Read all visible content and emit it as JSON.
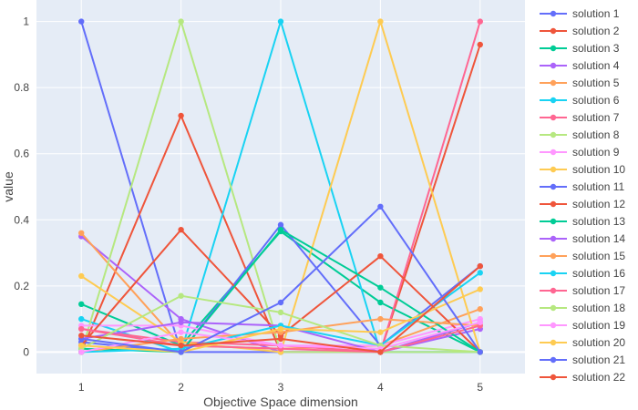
{
  "chart_data": {
    "type": "line",
    "xlabel": "Objective Space dimension",
    "ylabel": "value",
    "x": [
      1,
      2,
      3,
      4,
      5
    ],
    "xlim": [
      0.55,
      5.45
    ],
    "ylim": [
      -0.065,
      1.065
    ],
    "yticks": [
      0,
      0.2,
      0.4,
      0.6,
      0.8,
      1
    ],
    "ytick_labels": [
      "0",
      "0.2",
      "0.4",
      "0.6",
      "0.8",
      "1"
    ],
    "xtick_labels": [
      "1",
      "2",
      "3",
      "4",
      "5"
    ],
    "grid": true,
    "plot_bgcolor": "#e5ecf6",
    "legend_position": "right",
    "series": [
      {
        "name": "solution 1",
        "color": "#636efa",
        "values": [
          1.0,
          0.0,
          0.0,
          0.0,
          0.0
        ]
      },
      {
        "name": "solution 2",
        "color": "#ef553b",
        "values": [
          0.0,
          0.715,
          0.0,
          0.0,
          0.93
        ]
      },
      {
        "name": "solution 3",
        "color": "#00cc96",
        "values": [
          0.145,
          0.02,
          0.365,
          0.15,
          0.0
        ]
      },
      {
        "name": "solution 4",
        "color": "#ab63fa",
        "values": [
          0.35,
          0.1,
          0.0,
          0.0,
          0.07
        ]
      },
      {
        "name": "solution 5",
        "color": "#ffa15a",
        "values": [
          0.36,
          0.02,
          0.01,
          0.02,
          0.13
        ]
      },
      {
        "name": "solution 6",
        "color": "#19d3f3",
        "values": [
          0.1,
          0.0,
          1.0,
          0.0,
          0.0
        ]
      },
      {
        "name": "solution 7",
        "color": "#ff6692",
        "values": [
          0.07,
          0.03,
          0.02,
          0.0,
          1.0
        ]
      },
      {
        "name": "solution 8",
        "color": "#b6e880",
        "values": [
          0.0,
          1.0,
          0.0,
          0.0,
          0.0
        ]
      },
      {
        "name": "solution 9",
        "color": "#ff97ff",
        "values": [
          0.08,
          0.08,
          0.02,
          0.02,
          0.1
        ]
      },
      {
        "name": "solution 10",
        "color": "#fecb52",
        "values": [
          0.23,
          0.03,
          0.0,
          1.0,
          0.0
        ]
      },
      {
        "name": "solution 11",
        "color": "#636efa",
        "values": [
          0.03,
          0.0,
          0.385,
          0.02,
          0.26
        ]
      },
      {
        "name": "solution 12",
        "color": "#ef553b",
        "values": [
          0.02,
          0.37,
          0.05,
          0.29,
          0.0
        ]
      },
      {
        "name": "solution 13",
        "color": "#00cc96",
        "values": [
          0.01,
          0.0,
          0.37,
          0.195,
          0.0
        ]
      },
      {
        "name": "solution 14",
        "color": "#ab63fa",
        "values": [
          0.04,
          0.09,
          0.08,
          0.0,
          0.09
        ]
      },
      {
        "name": "solution 15",
        "color": "#ffa15a",
        "values": [
          0.0,
          0.04,
          0.06,
          0.1,
          0.08
        ]
      },
      {
        "name": "solution 16",
        "color": "#19d3f3",
        "values": [
          0.0,
          0.01,
          0.08,
          0.02,
          0.24
        ]
      },
      {
        "name": "solution 17",
        "color": "#ff6692",
        "values": [
          0.07,
          0.02,
          0.01,
          0.0,
          0.08
        ]
      },
      {
        "name": "solution 18",
        "color": "#b6e880",
        "values": [
          0.01,
          0.17,
          0.12,
          0.02,
          0.0
        ]
      },
      {
        "name": "solution 19",
        "color": "#ff97ff",
        "values": [
          0.0,
          0.06,
          0.02,
          0.01,
          0.09
        ]
      },
      {
        "name": "solution 20",
        "color": "#fecb52",
        "values": [
          0.02,
          0.0,
          0.07,
          0.06,
          0.19
        ]
      },
      {
        "name": "solution 21",
        "color": "#636efa",
        "values": [
          0.04,
          0.0,
          0.15,
          0.44,
          0.0
        ]
      },
      {
        "name": "solution 22",
        "color": "#ef553b",
        "values": [
          0.05,
          0.02,
          0.04,
          0.0,
          0.26
        ]
      }
    ]
  }
}
